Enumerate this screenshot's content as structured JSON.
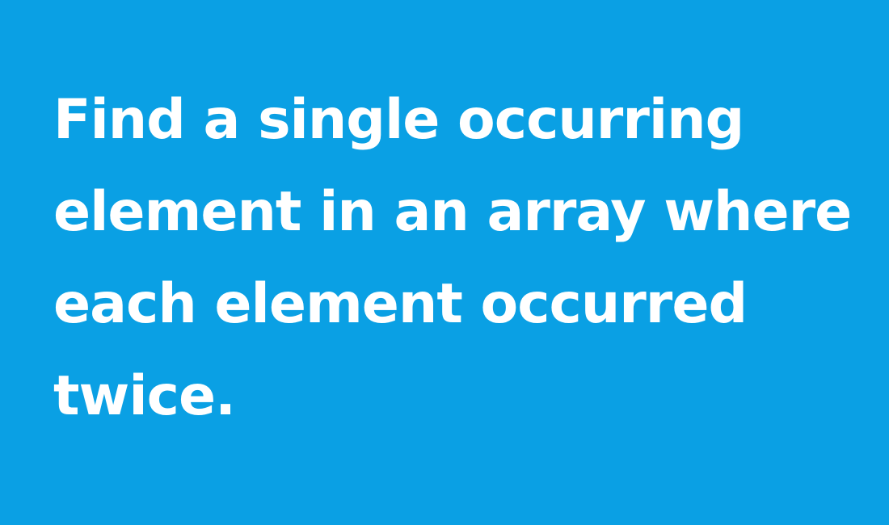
{
  "slide": {
    "background": "#0aa0e4",
    "text_color": "#ffffff",
    "title_lines": [
      "Find a single occurring",
      "element in an array where",
      "each element occurred",
      "twice."
    ]
  }
}
